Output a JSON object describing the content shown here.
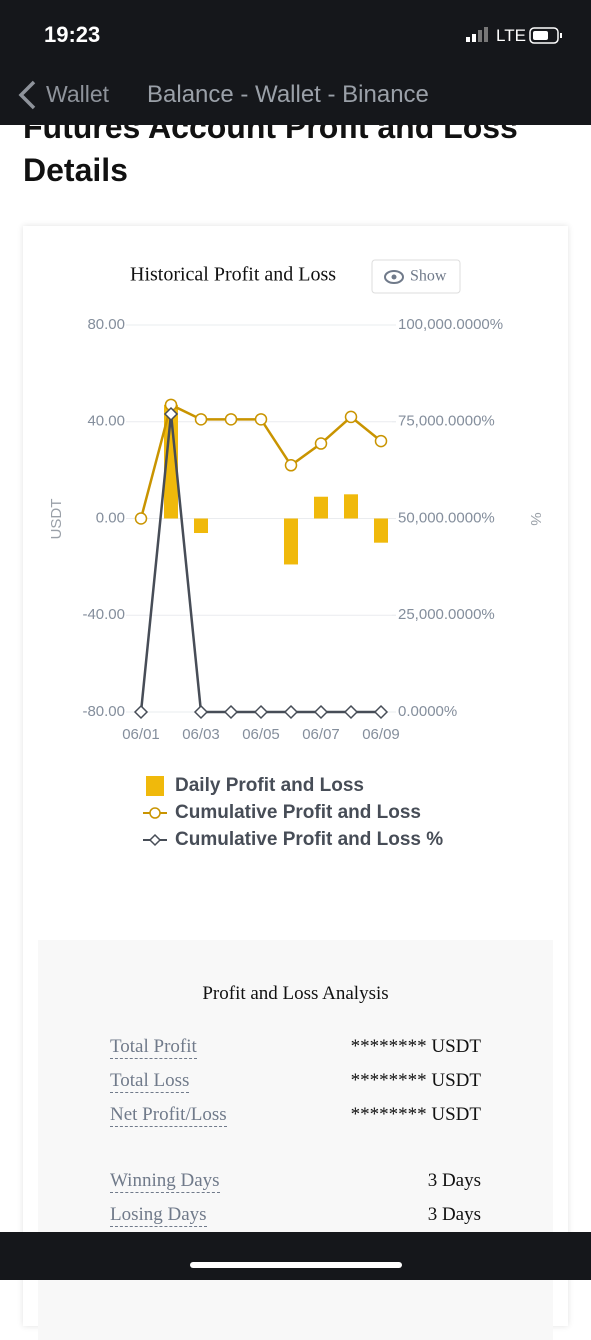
{
  "status_bar": {
    "time": "19:23",
    "network": "LTE"
  },
  "nav": {
    "back": "Wallet",
    "title": "Balance - Wallet - Binance"
  },
  "heading": "Futures Account Profit and Loss Details",
  "show_button": "Show",
  "chart_data": {
    "type": "combo",
    "title": "Historical Profit and Loss",
    "categories": [
      "06/01",
      null,
      "06/03",
      null,
      "06/05",
      null,
      "06/07",
      null,
      "06/09"
    ],
    "ylabel": "USDT",
    "y2label": "%",
    "ylim": [
      -80,
      80
    ],
    "yticks": [
      {
        "value": -80,
        "label": "-80.00"
      },
      {
        "value": -40,
        "label": "-40.00"
      },
      {
        "value": 0,
        "label": "0.00"
      },
      {
        "value": 40,
        "label": "40.00"
      },
      {
        "value": 80,
        "label": "80.00"
      }
    ],
    "y2lim": [
      0,
      100000
    ],
    "y2ticks": [
      {
        "value": 0,
        "label": "0.0000%"
      },
      {
        "value": 25000,
        "label": "25,000.0000%"
      },
      {
        "value": 50000,
        "label": "50,000.0000%"
      },
      {
        "value": 75000,
        "label": "75,000.0000%"
      },
      {
        "value": 100000,
        "label": "100,000.0000%"
      }
    ],
    "grid": true,
    "series": [
      {
        "name": "Daily Profit and Loss",
        "type": "bar",
        "color": "#f0b90b",
        "values": [
          0,
          47,
          -6,
          0,
          0,
          -19,
          9,
          10,
          -10
        ]
      },
      {
        "name": "Cumulative Profit and Loss",
        "type": "line",
        "color": "#c99400",
        "values": [
          0,
          47,
          41,
          41,
          41,
          22,
          31,
          42,
          32
        ]
      },
      {
        "name": "Cumulative Profit and Loss %",
        "type": "line",
        "axis": "y2",
        "color": "#474d57",
        "values": [
          0,
          77000,
          0,
          0,
          0,
          0,
          0,
          0,
          0
        ]
      }
    ]
  },
  "analysis": {
    "title": "Profit and Loss Analysis",
    "rows": [
      {
        "label": "Total Profit",
        "value": "******** USDT"
      },
      {
        "label": "Total Loss",
        "value": "******** USDT"
      },
      {
        "label": "Net Profit/Loss",
        "value": "******** USDT"
      },
      {
        "label": "Winning Days",
        "value": "3 Days"
      },
      {
        "label": "Losing Days",
        "value": "3 Days"
      }
    ]
  }
}
